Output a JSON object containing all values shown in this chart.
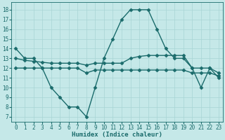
{
  "title": "",
  "xlabel": "Humidex (Indice chaleur)",
  "xlim": [
    -0.5,
    23.5
  ],
  "ylim": [
    6.5,
    18.8
  ],
  "yticks": [
    7,
    8,
    9,
    10,
    11,
    12,
    13,
    14,
    15,
    16,
    17,
    18
  ],
  "xticks": [
    0,
    1,
    2,
    3,
    4,
    5,
    6,
    7,
    8,
    9,
    10,
    11,
    12,
    13,
    14,
    15,
    16,
    17,
    18,
    19,
    20,
    21,
    22,
    23
  ],
  "bg_color": "#c5e8e8",
  "grid_color": "#a8d4d4",
  "line_color": "#1a6b6b",
  "line1_x": [
    0,
    1,
    2,
    3,
    4,
    5,
    6,
    7,
    8,
    9,
    10,
    11,
    12,
    13,
    14,
    15,
    16,
    17,
    18,
    19,
    20,
    21,
    22,
    23
  ],
  "line1_y": [
    14,
    13,
    13,
    12,
    10,
    9,
    8,
    8,
    7,
    10,
    13,
    15,
    17,
    18,
    18,
    18,
    16,
    14,
    13,
    13,
    12,
    10,
    12,
    11
  ],
  "line2_x": [
    0,
    1,
    2,
    3,
    4,
    5,
    6,
    7,
    8,
    9,
    10,
    11,
    12,
    13,
    14,
    15,
    16,
    17,
    18,
    19,
    20,
    21,
    22,
    23
  ],
  "line2_y": [
    13.0,
    12.8,
    12.7,
    12.6,
    12.5,
    12.5,
    12.5,
    12.5,
    12.3,
    12.5,
    12.5,
    12.5,
    12.5,
    13.0,
    13.2,
    13.3,
    13.3,
    13.3,
    13.3,
    13.3,
    12.0,
    12.0,
    12.0,
    11.5
  ],
  "line3_x": [
    0,
    1,
    2,
    3,
    4,
    5,
    6,
    7,
    8,
    9,
    10,
    11,
    12,
    13,
    14,
    15,
    16,
    17,
    18,
    19,
    20,
    21,
    22,
    23
  ],
  "line3_y": [
    12.0,
    12.0,
    12.0,
    12.0,
    12.0,
    12.0,
    12.0,
    12.0,
    11.5,
    11.8,
    11.8,
    11.8,
    11.8,
    11.8,
    11.8,
    11.8,
    11.8,
    11.8,
    11.8,
    11.8,
    11.5,
    11.5,
    11.5,
    11.2
  ],
  "marker": "D",
  "markersize": 2.5,
  "linewidth": 1.0,
  "tick_fontsize": 5.5,
  "xlabel_fontsize": 6.5
}
